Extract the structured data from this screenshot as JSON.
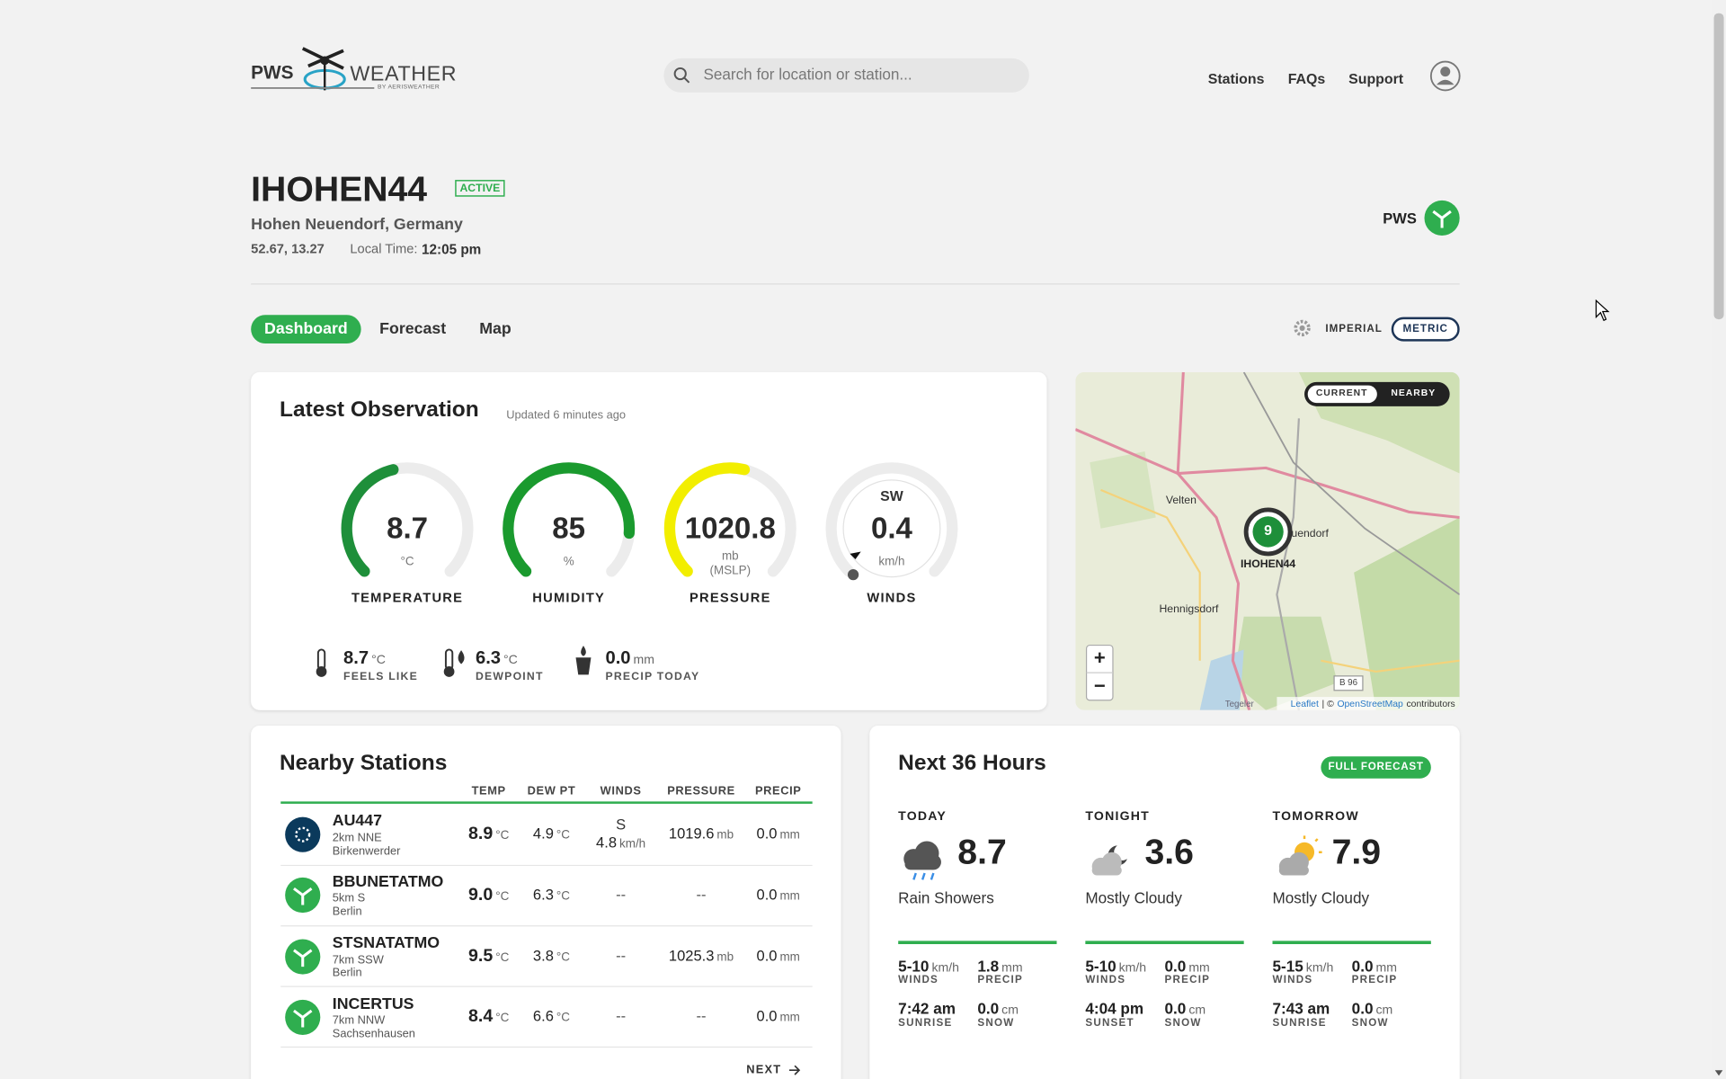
{
  "header": {
    "logo": {
      "brand": "PWS",
      "name": "WEATHER",
      "byline": "BY AERISWEATHER"
    },
    "search_placeholder": "Search for location or station...",
    "nav": [
      "Stations",
      "FAQs",
      "Support"
    ]
  },
  "station": {
    "id": "IHOHEN44",
    "status": "ACTIVE",
    "location": "Hohen Neuendorf, Germany",
    "coords": "52.67, 13.27",
    "local_time_label": "Local Time:",
    "local_time": "12:05 pm",
    "network": "PWS"
  },
  "tabs": [
    "Dashboard",
    "Forecast",
    "Map"
  ],
  "units": [
    "IMPERIAL",
    "METRIC"
  ],
  "observation": {
    "title": "Latest Observation",
    "updated": "Updated 6 minutes ago",
    "gauges": [
      {
        "value": 8.7,
        "unit": "°C",
        "label": "TEMPERATURE"
      },
      {
        "value": 85,
        "unit": "%",
        "label": "HUMIDITY"
      },
      {
        "value": 1020.8,
        "unit": "mb",
        "unit_note": "(MSLP)",
        "label": "PRESSURE"
      },
      {
        "direction": "SW",
        "value": 0.4,
        "unit": "km/h",
        "label": "WINDS"
      }
    ],
    "extras": [
      {
        "value": 8.7,
        "unit": "°C",
        "label": "FEELS LIKE"
      },
      {
        "value": 6.3,
        "unit": "°C",
        "label": "DEWPOINT"
      },
      {
        "value": "0.0",
        "unit": "mm",
        "label": "PRECIP TODAY"
      }
    ]
  },
  "map": {
    "toggle": [
      "CURRENT",
      "NEARBY"
    ],
    "places": [
      "Velten",
      "Hennigsdorf",
      "uendorf"
    ],
    "cluster": 9,
    "marker": "IHOHEN44",
    "road": "B 96",
    "water": "Tegeler",
    "zoom": [
      "+",
      "−"
    ],
    "attribution": [
      "Leaflet",
      "| ©",
      "OpenStreetMap",
      "contributors"
    ]
  },
  "nearby": {
    "title": "Nearby Stations",
    "columns": [
      "TEMP",
      "DEW PT",
      "WINDS",
      "PRESSURE",
      "PRECIP"
    ],
    "rows": [
      {
        "id": "AU447",
        "distance": "2km NNE",
        "city": "Birkenwerder",
        "temp": 8.9,
        "temp_unit": "°C",
        "dewpt": 4.9,
        "dewpt_unit": "°C",
        "winds": {
          "dir": "S",
          "value": 4.8,
          "unit": "km/h"
        },
        "pressure": {
          "value": 1019.6,
          "unit": "mb"
        },
        "precip": "0.0",
        "precip_unit": "mm"
      },
      {
        "id": "BBUNETATMO",
        "distance": "5km S",
        "city": "Berlin",
        "temp": "9.0",
        "temp_unit": "°C",
        "dewpt": 6.3,
        "dewpt_unit": "°C",
        "winds": "--",
        "pressure": "--",
        "precip": "0.0",
        "precip_unit": "mm"
      },
      {
        "id": "STSNATATMO",
        "distance": "7km SSW",
        "city": "Berlin",
        "temp": 9.5,
        "temp_unit": "°C",
        "dewpt": 3.8,
        "dewpt_unit": "°C",
        "winds": "--",
        "pressure": {
          "value": 1025.3,
          "unit": "mb"
        },
        "precip": "0.0",
        "precip_unit": "mm"
      },
      {
        "id": "INCERTUS",
        "distance": "7km NNW",
        "city": "Sachsenhausen",
        "temp": 8.4,
        "temp_unit": "°C",
        "dewpt": 6.6,
        "dewpt_unit": "°C",
        "winds": "--",
        "pressure": "--",
        "precip": "0.0",
        "precip_unit": "mm"
      }
    ],
    "next": "NEXT"
  },
  "forecast": {
    "title": "Next 36 Hours",
    "button": "FULL FORECAST",
    "periods": [
      {
        "name": "TODAY",
        "temp": 8.7,
        "condition": "Rain Showers",
        "winds": "5-10",
        "winds_unit": "km/h",
        "winds_label": "WINDS",
        "precip": 1.8,
        "precip_unit": "mm",
        "precip_label": "PRECIP",
        "sun_time": "7:42 am",
        "sun_label": "SUNRISE",
        "snow": "0.0",
        "snow_unit": "cm",
        "snow_label": "SNOW"
      },
      {
        "name": "TONIGHT",
        "temp": 3.6,
        "condition": "Mostly Cloudy",
        "winds": "5-10",
        "winds_unit": "km/h",
        "winds_label": "WINDS",
        "precip": "0.0",
        "precip_unit": "mm",
        "precip_label": "PRECIP",
        "sun_time": "4:04 pm",
        "sun_label": "SUNSET",
        "snow": "0.0",
        "snow_unit": "cm",
        "snow_label": "SNOW"
      },
      {
        "name": "TOMORROW",
        "temp": 7.9,
        "condition": "Mostly Cloudy",
        "winds": "5-15",
        "winds_unit": "km/h",
        "winds_label": "WINDS",
        "precip": "0.0",
        "precip_unit": "mm",
        "precip_label": "PRECIP",
        "sun_time": "7:43 am",
        "sun_label": "SUNRISE",
        "snow": "0.0",
        "snow_unit": "cm",
        "snow_label": "SNOW"
      }
    ]
  }
}
